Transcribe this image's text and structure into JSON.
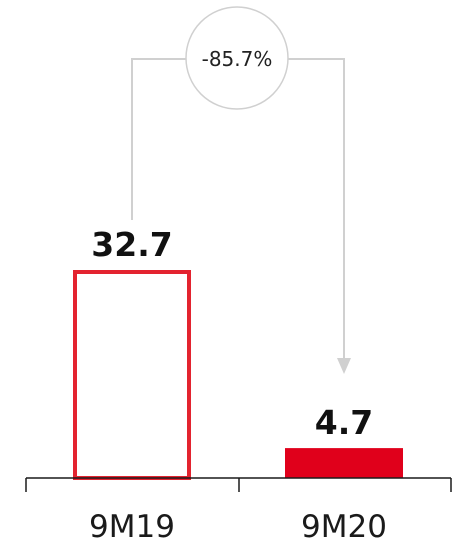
{
  "chart_data": {
    "type": "bar",
    "categories": [
      "9M19",
      "9M20"
    ],
    "values": [
      32.7,
      4.7
    ],
    "value_labels": [
      "32.7",
      "4.7"
    ],
    "change_label": "-85.7%",
    "ylim": [
      0,
      36
    ],
    "grid": false,
    "legend": "none",
    "bar_styles": [
      "outline",
      "filled"
    ],
    "colors": {
      "accent": "#E0001B",
      "outline_bar": "#E3232F",
      "connector": "#D0D0D0",
      "axis": "#1A1A1A",
      "text": "#111111"
    }
  }
}
